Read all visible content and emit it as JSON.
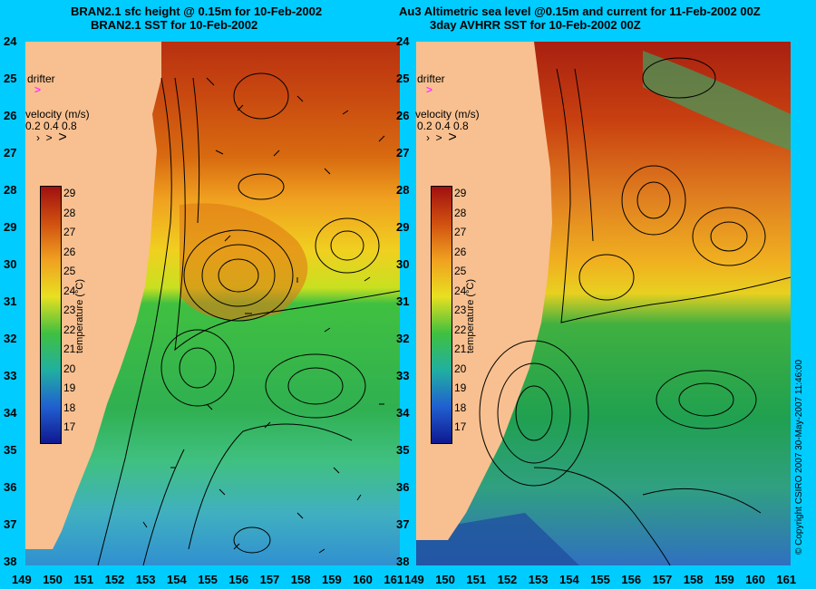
{
  "left_panel": {
    "title_line1": "BRAN2.1 sfc height @ 0.15m for 10-Feb-2002",
    "title_line2": "BRAN2.1 SST for 10-Feb-2002",
    "drifter_label": "drifter",
    "velocity_label": "velocity (m/s)",
    "velocity_scale": "0.2 0.4 0.8"
  },
  "right_panel": {
    "title_line1": "Au3 Altimetric sea level  @0.15m and current for 11-Feb-2002 00Z",
    "title_line2": "3day AVHRR SST for 10-Feb-2002 00Z",
    "drifter_label": "drifter",
    "velocity_label": "velocity (m/s)",
    "velocity_scale": "0.2 0.4 0.8"
  },
  "colorbar": {
    "title": "temperature (°C)",
    "labels": [
      "29",
      "28",
      "27",
      "26",
      "25",
      "24",
      "23",
      "22",
      "21",
      "20",
      "19",
      "18",
      "17"
    ]
  },
  "y_axis_labels": [
    "24",
    "25",
    "26",
    "27",
    "28",
    "29",
    "30",
    "31",
    "32",
    "33",
    "34",
    "35",
    "36",
    "37",
    "38"
  ],
  "x_axis_labels": [
    "149",
    "150",
    "151",
    "152",
    "153",
    "154",
    "155",
    "156",
    "157",
    "158",
    "159",
    "160",
    "161"
  ],
  "copyright": "© Copyright CSIRO 2007   30-May-2007 11:46:00",
  "colors": {
    "background": "#00ccff",
    "land": "#f8c090",
    "drifter": "#ff33ff"
  }
}
